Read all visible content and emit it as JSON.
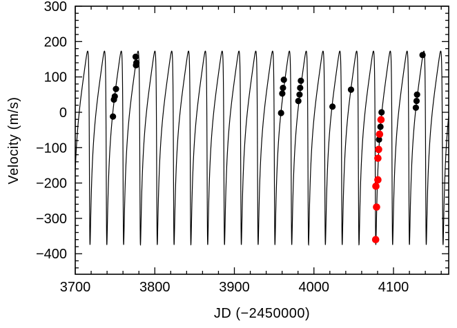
{
  "figure": {
    "background": "#ffffff",
    "frame_color": "#000000"
  },
  "chart_data": {
    "type": "line+scatter",
    "title": "",
    "xlabel": "JD (−2450000)",
    "ylabel": "Velocity (m/s)",
    "xlim": [
      3700,
      4169.4
    ],
    "ylim": [
      -458,
      300
    ],
    "grid": false,
    "legend_position": "none",
    "x_major_ticks": [
      3700,
      3800,
      3900,
      4000,
      4100
    ],
    "x_tick_labels": [
      "3700",
      "3800",
      "3900",
      "4000",
      "4100"
    ],
    "x_minor_step": 20,
    "y_major_ticks": [
      300,
      200,
      100,
      0,
      -100,
      -200,
      -300,
      -400
    ],
    "y_tick_labels": [
      "300",
      "200",
      "100",
      "0",
      "−100",
      "−200",
      "−300",
      "−400"
    ],
    "y_minor_step": 20,
    "curve": {
      "color": "#000000",
      "width": 1.2,
      "kind": "keplerian_rv",
      "period_days": 21.13,
      "K_ms": 274,
      "eccentricity": 0.67,
      "omega_deg": 123,
      "gamma_ms": -1,
      "t_periastron": 3718.0,
      "sample_step_days": 0.1,
      "velocity_max_ms": 173,
      "velocity_min_ms": -375
    },
    "series": [
      {
        "name": "velocities-black",
        "color": "#000000",
        "marker": "circle",
        "marker_radius": 4.6,
        "points": [
          [
            3747.4,
            -12
          ],
          [
            3748.6,
            36
          ],
          [
            3749.7,
            45
          ],
          [
            3751.2,
            66
          ],
          [
            3775.9,
            157
          ],
          [
            3776.4,
            133
          ],
          [
            3776.9,
            140
          ],
          [
            3958.7,
            -2
          ],
          [
            3960.2,
            53
          ],
          [
            3961.1,
            69
          ],
          [
            3962.2,
            92
          ],
          [
            3980.4,
            32
          ],
          [
            3981.9,
            50
          ],
          [
            3982.7,
            69
          ],
          [
            3983.6,
            89
          ],
          [
            4023.3,
            16
          ],
          [
            4046.6,
            64
          ],
          [
            4081.8,
            -77
          ],
          [
            4083.6,
            -41
          ],
          [
            4085.0,
            0
          ],
          [
            4128.1,
            13
          ],
          [
            4129.0,
            32
          ],
          [
            4129.6,
            50
          ],
          [
            4136.5,
            162
          ]
        ]
      },
      {
        "name": "velocities-red",
        "color": "#ff0000",
        "marker": "circle",
        "marker_radius": 5.3,
        "points": [
          [
            4077.6,
            -360
          ],
          [
            4078.7,
            -268
          ],
          [
            4077.9,
            -209
          ],
          [
            4080.4,
            -191
          ],
          [
            4080.4,
            -130
          ],
          [
            4081.3,
            -105
          ],
          [
            4082.5,
            -62
          ],
          [
            4084.3,
            -21
          ]
        ]
      }
    ]
  }
}
